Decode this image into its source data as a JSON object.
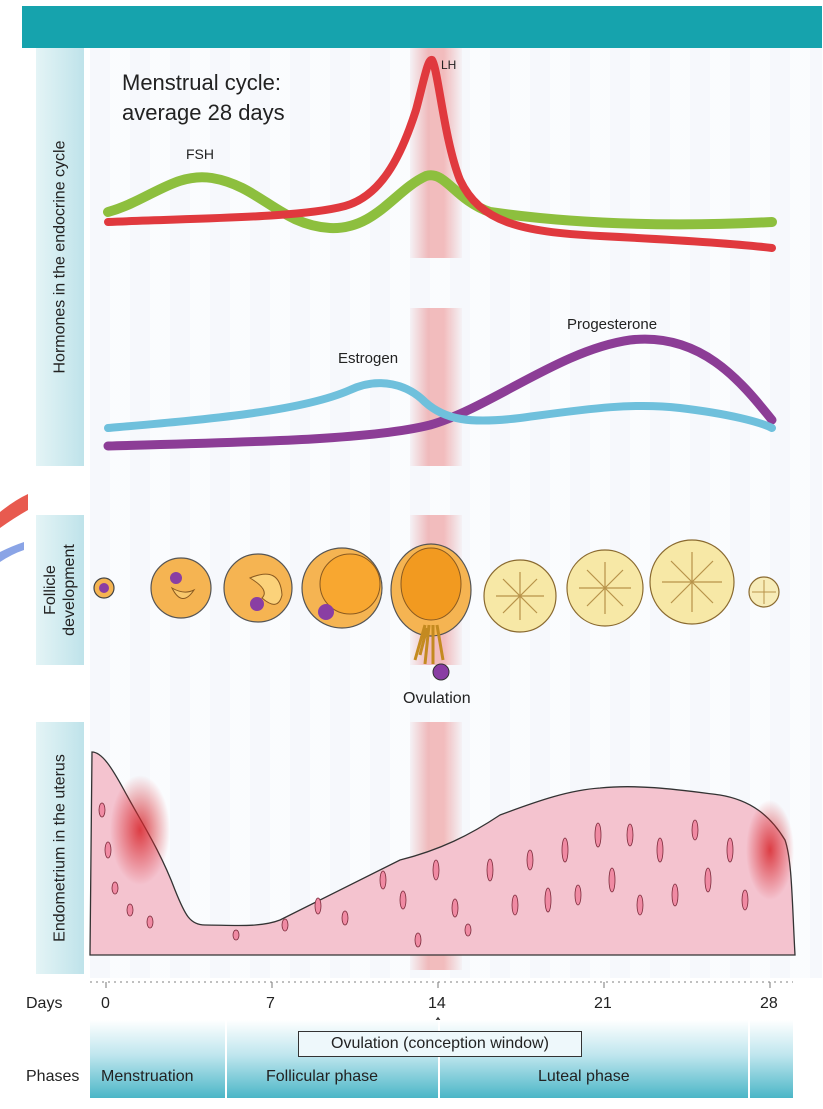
{
  "title_lines": [
    "Menstrual cycle:",
    "average 28 days"
  ],
  "sections": {
    "hormones": "Hormones in the endocrine cycle",
    "follicle": [
      "Follicle",
      "development"
    ],
    "endometrium": "Endometrium in the uterus"
  },
  "hormone_labels": {
    "lh": "LH",
    "fsh": "FSH",
    "estrogen": "Estrogen",
    "progesterone": "Progesterone"
  },
  "ovulation_label": "Ovulation",
  "days_label": "Days",
  "day_ticks": [
    "0",
    "7",
    "14",
    "21",
    "28"
  ],
  "phases_label": "Phases",
  "phases": [
    "Menstruation",
    "Follicular phase",
    "Luteal phase"
  ],
  "ovulation_window": "Ovulation (conception window)",
  "colors": {
    "header": "#16a3ad",
    "lh": "#e0393e",
    "fsh": "#8dbf3e",
    "estrogen": "#6fc0dc",
    "progesterone": "#8c3d96",
    "endometrium": "#f4c3cf",
    "follicle": "#f5b452",
    "corpus_luteum": "#f7e8a6"
  }
}
